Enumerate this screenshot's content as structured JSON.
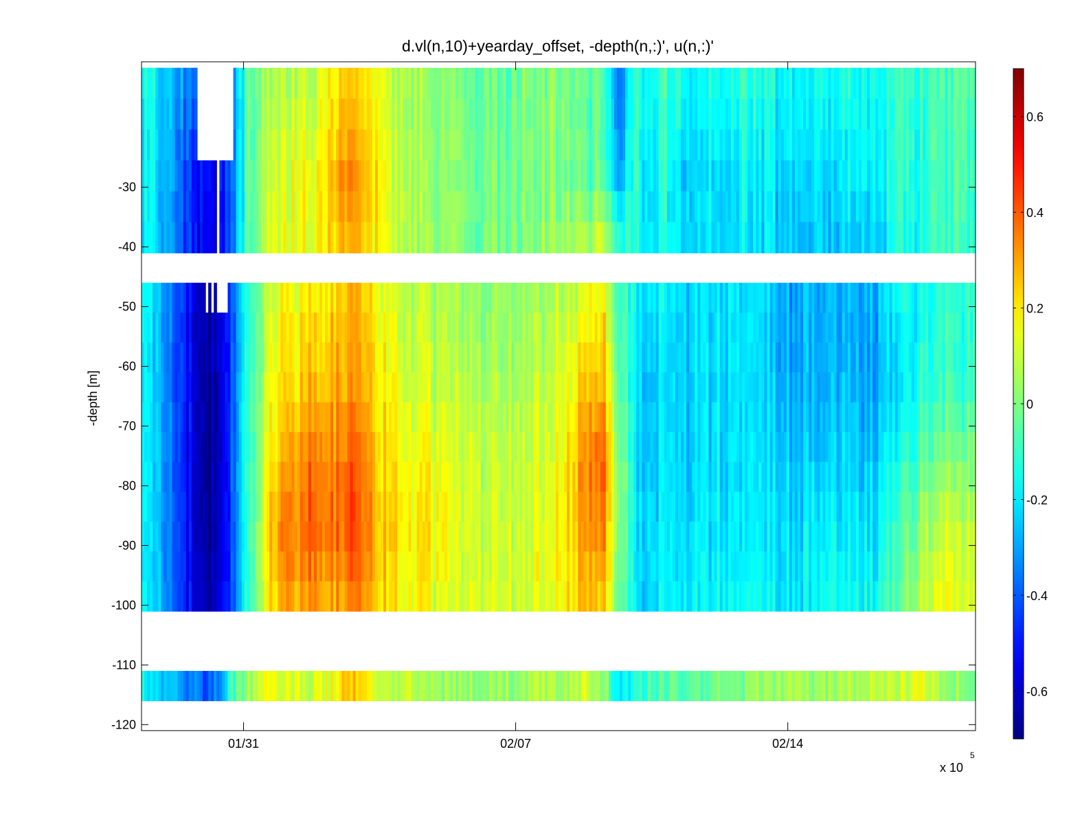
{
  "chart_data": {
    "type": "heatmap",
    "title": "d.vl(n,10)+yearday_offset, -depth(n,:)', u(n,:)'",
    "xlabel": "",
    "ylabel": "-depth [m]",
    "x_multiplier_label": "x 10",
    "x_multiplier_exponent": "5",
    "xlim": [
      28.25,
      58.9
    ],
    "ylim": [
      -121,
      -9
    ],
    "x_ticks": [
      {
        "value": 32,
        "label": "01/31"
      },
      {
        "value": 42,
        "label": "02/07"
      },
      {
        "value": 52,
        "label": "02/14"
      }
    ],
    "y_ticks": [
      {
        "value": -30,
        "label": "-30"
      },
      {
        "value": -40,
        "label": "-40"
      },
      {
        "value": -50,
        "label": "-50"
      },
      {
        "value": -60,
        "label": "-60"
      },
      {
        "value": -70,
        "label": "-70"
      },
      {
        "value": -80,
        "label": "-80"
      },
      {
        "value": -90,
        "label": "-90"
      },
      {
        "value": -100,
        "label": "-100"
      },
      {
        "value": -110,
        "label": "-110"
      },
      {
        "value": -120,
        "label": "-120"
      }
    ],
    "colorbar": {
      "clim": [
        -0.7,
        0.7
      ],
      "colormap": "jet",
      "ticks": [
        {
          "value": 0.6,
          "label": "0.6"
        },
        {
          "value": 0.4,
          "label": "0.4"
        },
        {
          "value": 0.2,
          "label": "0.2"
        },
        {
          "value": 0,
          "label": "0"
        },
        {
          "value": -0.2,
          "label": "-0.2"
        },
        {
          "value": -0.4,
          "label": "-0.4"
        },
        {
          "value": -0.6,
          "label": "-0.6"
        }
      ]
    },
    "depth_bands": [
      {
        "top": -10,
        "bottom": -41
      },
      {
        "top": -46,
        "bottom": -101
      },
      {
        "top": -111,
        "bottom": -116
      }
    ],
    "column_x": [
      28.4,
      29.4,
      30.1,
      30.6,
      31.1,
      31.6,
      32.2,
      33.0,
      33.8,
      34.6,
      35.3,
      36.0,
      36.7,
      37.5,
      38.5,
      39.5,
      40.5,
      41.5,
      42.5,
      43.5,
      44.5,
      45.2,
      45.8,
      46.4,
      46.9,
      47.5,
      48.3,
      49.2,
      50.2,
      51.2,
      52.2,
      53.2,
      54.2,
      55.2,
      56.0,
      56.8,
      57.6,
      58.4,
      58.9
    ],
    "depth_rows": [
      -14,
      -28,
      -42,
      -52,
      -64,
      -76,
      -88,
      -100,
      -113
    ],
    "u_values": [
      [
        -0.15,
        -0.25,
        -0.4,
        -0.45,
        -0.5,
        -0.3,
        -0.05,
        0.05,
        0.08,
        0.12,
        0.18,
        0.25,
        0.18,
        0.08,
        0.05,
        0.0,
        -0.02,
        -0.03,
        0.02,
        0.0,
        -0.05,
        -0.05,
        -0.4,
        -0.1,
        -0.15,
        -0.1,
        -0.18,
        -0.15,
        -0.12,
        -0.15,
        -0.2,
        -0.18,
        -0.15,
        -0.18,
        -0.1,
        -0.12,
        -0.08,
        -0.06,
        -0.06
      ],
      [
        -0.18,
        -0.28,
        -0.5,
        -0.55,
        -0.55,
        -0.35,
        -0.05,
        0.08,
        0.15,
        0.18,
        0.25,
        0.35,
        0.22,
        0.1,
        0.05,
        0.02,
        0.0,
        -0.02,
        0.02,
        0.0,
        -0.05,
        -0.05,
        -0.3,
        -0.12,
        -0.2,
        -0.15,
        -0.25,
        -0.2,
        -0.18,
        -0.2,
        -0.25,
        -0.25,
        -0.2,
        -0.2,
        -0.12,
        -0.15,
        -0.1,
        -0.08,
        -0.08
      ],
      [
        -0.18,
        -0.3,
        -0.5,
        -0.6,
        -0.58,
        -0.35,
        -0.05,
        0.1,
        0.15,
        0.18,
        0.22,
        0.28,
        0.2,
        0.1,
        0.05,
        0.03,
        0.0,
        0.0,
        0.03,
        0.05,
        0.08,
        0.15,
        -0.1,
        -0.15,
        -0.2,
        -0.15,
        -0.22,
        -0.2,
        -0.2,
        -0.22,
        -0.3,
        -0.28,
        -0.25,
        -0.28,
        -0.15,
        -0.15,
        -0.12,
        -0.1,
        -0.1
      ],
      [
        -0.2,
        -0.35,
        -0.55,
        -0.65,
        -0.62,
        -0.4,
        -0.08,
        0.12,
        0.18,
        0.22,
        0.25,
        0.28,
        0.22,
        0.12,
        0.08,
        0.05,
        0.02,
        0.02,
        0.05,
        0.1,
        0.15,
        0.22,
        -0.05,
        -0.18,
        -0.22,
        -0.2,
        -0.25,
        -0.22,
        -0.2,
        -0.25,
        -0.3,
        -0.3,
        -0.28,
        -0.3,
        -0.2,
        -0.18,
        -0.12,
        -0.1,
        -0.1
      ],
      [
        -0.2,
        -0.35,
        -0.55,
        -0.68,
        -0.65,
        -0.4,
        -0.08,
        0.15,
        0.22,
        0.28,
        0.3,
        0.3,
        0.25,
        0.15,
        0.1,
        0.08,
        0.05,
        0.05,
        0.08,
        0.12,
        0.25,
        0.3,
        0.0,
        -0.2,
        -0.25,
        -0.22,
        -0.25,
        -0.22,
        -0.2,
        -0.25,
        -0.28,
        -0.3,
        -0.25,
        -0.3,
        -0.25,
        -0.15,
        -0.1,
        -0.08,
        -0.08
      ],
      [
        -0.2,
        -0.35,
        -0.55,
        -0.68,
        -0.65,
        -0.4,
        -0.08,
        0.2,
        0.3,
        0.38,
        0.35,
        0.4,
        0.3,
        0.2,
        0.15,
        0.12,
        0.08,
        0.08,
        0.1,
        0.15,
        0.32,
        0.42,
        0.05,
        -0.2,
        -0.25,
        -0.22,
        -0.25,
        -0.22,
        -0.2,
        -0.22,
        -0.25,
        -0.25,
        -0.22,
        -0.25,
        -0.15,
        -0.08,
        0.0,
        0.02,
        0.02
      ],
      [
        -0.2,
        -0.35,
        -0.55,
        -0.68,
        -0.65,
        -0.42,
        -0.08,
        0.25,
        0.35,
        0.4,
        0.38,
        0.42,
        0.32,
        0.22,
        0.18,
        0.15,
        0.1,
        0.1,
        0.12,
        0.18,
        0.3,
        0.35,
        0.05,
        -0.2,
        -0.22,
        -0.2,
        -0.22,
        -0.2,
        -0.18,
        -0.2,
        -0.22,
        -0.2,
        -0.2,
        -0.2,
        -0.1,
        0.0,
        0.1,
        0.12,
        0.12
      ],
      [
        -0.2,
        -0.35,
        -0.55,
        -0.65,
        -0.62,
        -0.4,
        -0.08,
        0.22,
        0.3,
        0.32,
        0.3,
        0.32,
        0.28,
        0.2,
        0.15,
        0.12,
        0.1,
        0.1,
        0.12,
        0.18,
        0.25,
        0.25,
        0.0,
        -0.2,
        -0.22,
        -0.2,
        -0.2,
        -0.18,
        -0.15,
        -0.18,
        -0.2,
        -0.18,
        -0.15,
        -0.15,
        -0.05,
        0.05,
        0.18,
        0.15,
        0.12
      ],
      [
        -0.18,
        -0.25,
        -0.35,
        -0.4,
        -0.35,
        -0.1,
        0.05,
        0.15,
        0.12,
        0.1,
        0.15,
        0.3,
        0.15,
        0.08,
        0.05,
        0.05,
        0.03,
        0.02,
        0.05,
        0.05,
        0.1,
        0.05,
        -0.2,
        -0.15,
        -0.08,
        -0.05,
        -0.05,
        -0.02,
        0.0,
        0.05,
        0.05,
        0.03,
        0.05,
        0.08,
        0.1,
        0.15,
        0.05,
        0.02,
        0.0
      ]
    ],
    "gaps": [
      {
        "x0": 30.3,
        "x1": 31.6,
        "y0": -10,
        "y1": -25
      },
      {
        "x0": 31.0,
        "x1": 31.15,
        "y0": -25,
        "y1": -41
      },
      {
        "x0": 30.55,
        "x1": 30.7,
        "y0": -46,
        "y1": -51
      },
      {
        "x0": 30.8,
        "x1": 30.95,
        "y0": -46,
        "y1": -51
      },
      {
        "x0": 31.05,
        "x1": 31.4,
        "y0": -46,
        "y1": -51
      }
    ]
  }
}
